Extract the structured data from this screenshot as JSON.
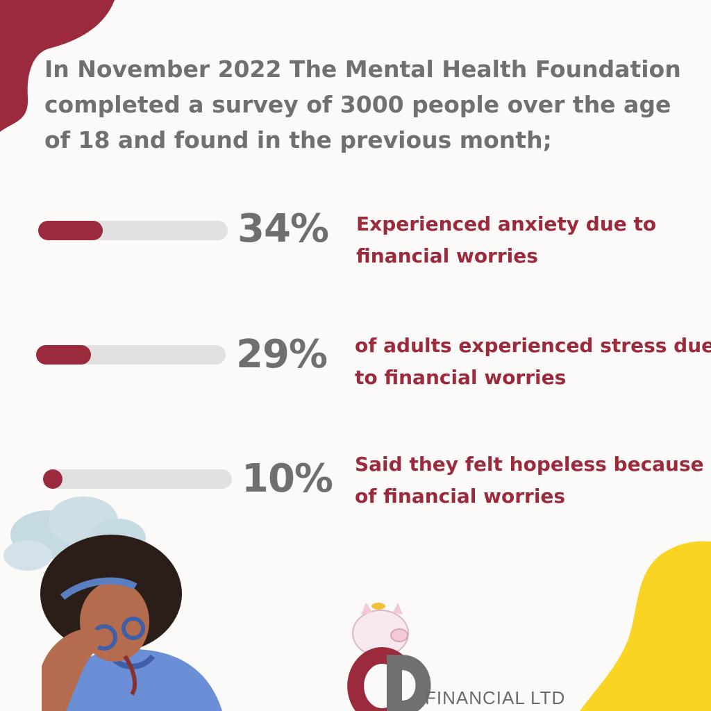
{
  "intro": "In November 2022 The Mental Health Foundation completed a survey of 3000 people over the age of 18 and found in the previous month;",
  "stats": [
    {
      "fraction": 0.34,
      "percent_label": "34%",
      "description": "Experienced anxiety due to financial worries"
    },
    {
      "fraction": 0.29,
      "percent_label": "29%",
      "description": "of adults experienced stress due to financial worries"
    },
    {
      "fraction": 0.1,
      "percent_label": "10%",
      "description": "Said they felt hopeless because of financial worries"
    }
  ],
  "logo": {
    "monogram": "CD",
    "company": "FINANCIAL LTD"
  },
  "colors": {
    "accent": "#9c2a3d",
    "track": "#e2e1e1",
    "text_gray": "#707070",
    "yellow_blob": "#f9d423",
    "background": "#fbfaf8"
  },
  "icons": [
    "piggy-bank-icon",
    "stressed-person-illustration",
    "worry-cloud-illustration"
  ]
}
